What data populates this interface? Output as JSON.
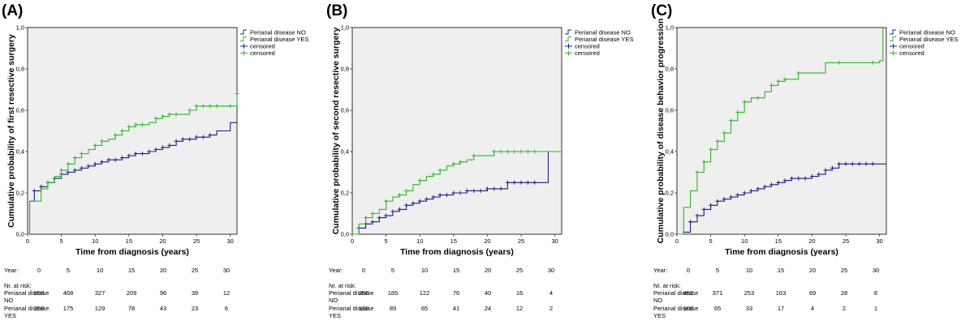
{
  "colors": {
    "no": "#1c1f8c",
    "yes": "#2fb52b",
    "plot_bg": "#efefef",
    "frame": "#000000"
  },
  "chart_data": [
    {
      "type": "line",
      "panel_label": "(A)",
      "ylabel": "Cumulative probability of first resective surgery",
      "xlabel": "Time from diagnosis (years)",
      "xticks": [
        0,
        5,
        10,
        15,
        20,
        25,
        30
      ],
      "yticks": [
        "0,0",
        "0,2",
        "0,4",
        "0,6",
        "0,8",
        "1,0"
      ],
      "xlim": [
        0,
        31
      ],
      "ylim": [
        0,
        1
      ],
      "legend": [
        "Perianal disease NO",
        "Perianal disease YES",
        "censored",
        "censored"
      ],
      "legend_position": "top-right",
      "series": [
        {
          "name": "Perianal disease NO",
          "x": [
            0,
            0.3,
            1,
            2,
            3,
            4,
            5,
            6,
            7,
            8,
            9,
            10,
            11,
            12,
            13,
            14,
            15,
            16,
            17,
            18,
            19,
            20,
            21,
            22,
            23,
            24,
            25,
            26,
            27,
            28,
            29,
            30,
            31
          ],
          "y": [
            0,
            0.16,
            0.21,
            0.23,
            0.25,
            0.27,
            0.29,
            0.3,
            0.31,
            0.32,
            0.33,
            0.34,
            0.35,
            0.36,
            0.36,
            0.37,
            0.38,
            0.39,
            0.39,
            0.4,
            0.41,
            0.42,
            0.43,
            0.45,
            0.46,
            0.46,
            0.47,
            0.47,
            0.48,
            0.5,
            0.5,
            0.54,
            0.54
          ],
          "censored_x": [
            1,
            2,
            3,
            4,
            5,
            6,
            7,
            8,
            9,
            10,
            11,
            12,
            13,
            14,
            15,
            16,
            17,
            18,
            19,
            20,
            21,
            22,
            23,
            24,
            25,
            26,
            27
          ]
        },
        {
          "name": "Perianal disease YES",
          "x": [
            0,
            0.3,
            2,
            3,
            4,
            5,
            6,
            7,
            8,
            9,
            10,
            11,
            12,
            13,
            14,
            15,
            16,
            17,
            18,
            19,
            20,
            21,
            22,
            23,
            24,
            25,
            26,
            27,
            28,
            29,
            30,
            31
          ],
          "y": [
            0,
            0.16,
            0.22,
            0.25,
            0.28,
            0.31,
            0.34,
            0.37,
            0.39,
            0.41,
            0.43,
            0.45,
            0.46,
            0.48,
            0.5,
            0.52,
            0.53,
            0.53,
            0.54,
            0.56,
            0.57,
            0.58,
            0.58,
            0.58,
            0.6,
            0.62,
            0.62,
            0.62,
            0.62,
            0.62,
            0.62,
            0.68
          ],
          "censored_x": [
            3,
            5,
            6,
            7,
            8,
            10,
            11,
            13,
            14,
            15,
            16,
            17,
            19,
            20,
            21,
            22,
            24,
            25,
            26,
            27,
            28,
            30,
            31
          ]
        }
      ],
      "at_risk": {
        "year_label": "Year:",
        "header": "Nr. at risk:",
        "years": [
          "0",
          "5",
          "10",
          "15",
          "20",
          "25",
          "30"
        ],
        "rows": [
          {
            "label1": "Perianal disease",
            "label2": "NO",
            "values": [
              "693",
              "468",
              "327",
              "209",
              "96",
              "39",
              "12"
            ]
          },
          {
            "label1": "Perianal disease",
            "label2": "YES",
            "values": [
              "253",
              "175",
              "129",
              "78",
              "43",
              "23",
              "6"
            ]
          }
        ]
      }
    },
    {
      "type": "line",
      "panel_label": "(B)",
      "ylabel": "Cumulative probability of second resective surgery",
      "xlabel": "Time from diagnosis (years)",
      "xticks": [
        0,
        5,
        10,
        15,
        20,
        25,
        30
      ],
      "yticks": [
        "0,0",
        "0,2",
        "0,4",
        "0,6",
        "0,8",
        "1,0"
      ],
      "xlim": [
        0,
        31
      ],
      "ylim": [
        0,
        1
      ],
      "legend": [
        "Perianal disease NO",
        "Perianal disease YES",
        "censored",
        "censored"
      ],
      "legend_position": "top-right",
      "series": [
        {
          "name": "Perianal disease NO",
          "x": [
            0,
            1,
            2,
            3,
            4,
            5,
            6,
            7,
            8,
            9,
            10,
            11,
            12,
            13,
            14,
            15,
            16,
            17,
            18,
            19,
            20,
            21,
            22,
            23,
            24,
            25,
            26,
            27,
            28,
            29,
            31
          ],
          "y": [
            0,
            0.03,
            0.05,
            0.06,
            0.08,
            0.09,
            0.11,
            0.12,
            0.14,
            0.15,
            0.16,
            0.17,
            0.18,
            0.19,
            0.19,
            0.2,
            0.2,
            0.21,
            0.21,
            0.21,
            0.22,
            0.22,
            0.22,
            0.25,
            0.25,
            0.25,
            0.25,
            0.25,
            0.25,
            0.4,
            0.4
          ],
          "censored_x": [
            1,
            2,
            3,
            4,
            5,
            6,
            7,
            8,
            9,
            10,
            11,
            12,
            13,
            14,
            15,
            16,
            17,
            18,
            19,
            20,
            21,
            22,
            23,
            24,
            25,
            26,
            27
          ]
        },
        {
          "name": "Perianal disease YES",
          "x": [
            0,
            1,
            2,
            3,
            4,
            5,
            6,
            7,
            8,
            9,
            10,
            11,
            12,
            13,
            14,
            15,
            16,
            17,
            18,
            19,
            20,
            21,
            22,
            23,
            24,
            25,
            26,
            27,
            28,
            29,
            31
          ],
          "y": [
            0,
            0.05,
            0.08,
            0.1,
            0.12,
            0.16,
            0.18,
            0.19,
            0.21,
            0.24,
            0.26,
            0.28,
            0.29,
            0.31,
            0.33,
            0.34,
            0.35,
            0.36,
            0.38,
            0.38,
            0.38,
            0.4,
            0.4,
            0.4,
            0.4,
            0.4,
            0.4,
            0.4,
            0.4,
            0.4,
            0.4
          ],
          "censored_x": [
            2,
            3,
            5,
            7,
            8,
            10,
            12,
            13,
            15,
            16,
            18,
            21,
            22,
            23,
            24,
            25,
            26,
            27
          ]
        }
      ],
      "at_risk": {
        "year_label": "Year:",
        "header": "Nr. at risk:",
        "years": [
          "0",
          "5",
          "10",
          "15",
          "20",
          "25",
          "30"
        ],
        "rows": [
          {
            "label1": "Perianal disease",
            "label2": "NO",
            "values": [
              "256",
              "185",
              "122",
              "76",
              "40",
              "16",
              "4"
            ]
          },
          {
            "label1": "Perianal disease",
            "label2": "YES",
            "values": [
              "128",
              "89",
              "65",
              "41",
              "24",
              "12",
              "2"
            ]
          }
        ]
      }
    },
    {
      "type": "line",
      "panel_label": "(C)",
      "ylabel": "Cumulative probability of disease behavior progression",
      "xlabel": "Time from diagnosis (years)",
      "xticks": [
        0,
        5,
        10,
        15,
        20,
        25,
        30
      ],
      "yticks": [
        "0,0",
        "0,2",
        "0,4",
        "0,6",
        "0,8",
        "1,0"
      ],
      "xlim": [
        0,
        31
      ],
      "ylim": [
        0,
        1
      ],
      "legend": [
        "Perianal disease NO",
        "Perianal disease YES",
        "censored",
        "censored"
      ],
      "legend_position": "top-right",
      "series": [
        {
          "name": "Perianal disease NO",
          "x": [
            0,
            1,
            2,
            3,
            4,
            5,
            6,
            7,
            8,
            9,
            10,
            11,
            12,
            13,
            14,
            15,
            16,
            17,
            18,
            19,
            20,
            21,
            22,
            23,
            24,
            25,
            26,
            27,
            28,
            29,
            31
          ],
          "y": [
            0,
            0.01,
            0.06,
            0.09,
            0.12,
            0.14,
            0.16,
            0.17,
            0.18,
            0.19,
            0.2,
            0.21,
            0.22,
            0.23,
            0.24,
            0.25,
            0.26,
            0.27,
            0.27,
            0.27,
            0.28,
            0.29,
            0.31,
            0.32,
            0.34,
            0.34,
            0.34,
            0.34,
            0.34,
            0.34,
            0.34
          ],
          "censored_x": [
            2,
            3,
            4,
            5,
            6,
            7,
            8,
            9,
            10,
            11,
            12,
            13,
            14,
            15,
            16,
            17,
            18,
            19,
            20,
            21,
            22,
            23,
            24,
            25,
            26,
            27,
            28,
            29
          ]
        },
        {
          "name": "Perianal disease YES",
          "x": [
            0,
            1,
            2,
            3,
            4,
            5,
            6,
            7,
            8,
            9,
            10,
            11,
            12,
            13,
            14,
            15,
            16,
            17,
            18,
            20,
            22,
            24,
            26,
            28,
            30,
            30.5
          ],
          "y": [
            0,
            0.13,
            0.21,
            0.3,
            0.35,
            0.41,
            0.45,
            0.49,
            0.55,
            0.59,
            0.64,
            0.66,
            0.66,
            0.69,
            0.72,
            0.74,
            0.75,
            0.75,
            0.78,
            0.78,
            0.83,
            0.83,
            0.83,
            0.83,
            0.84,
            1.0
          ],
          "censored_x": [
            3,
            4,
            5,
            6,
            7,
            8,
            9,
            10,
            12,
            14,
            15,
            16,
            18,
            24,
            29
          ]
        }
      ],
      "at_risk": {
        "year_label": "Year:",
        "header": "Nr. at risk:",
        "years": [
          "0",
          "5",
          "10",
          "15",
          "20",
          "25",
          "30"
        ],
        "rows": [
          {
            "label1": "Perianal disease",
            "label2": "NO",
            "values": [
              "452",
              "371",
              "253",
              "163",
              "69",
              "28",
              "8"
            ]
          },
          {
            "label1": "Perianal disease",
            "label2": "YES",
            "values": [
              "106",
              "65",
              "33",
              "17",
              "4",
              "2",
              "1"
            ]
          }
        ]
      }
    }
  ]
}
